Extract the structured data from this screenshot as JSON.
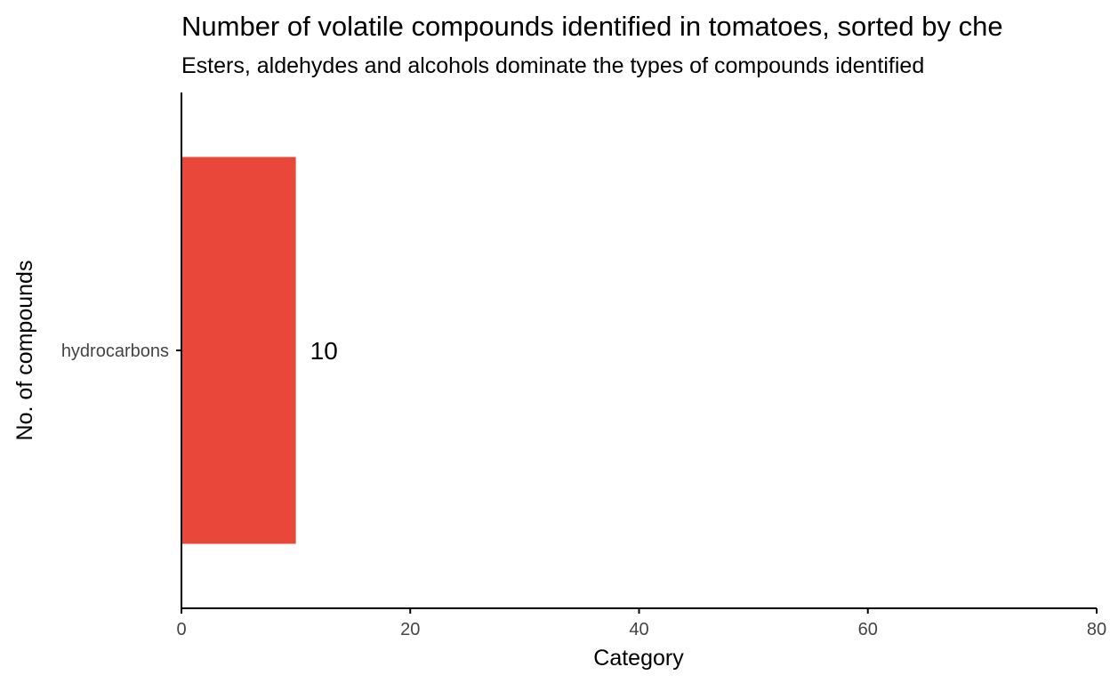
{
  "chart_data": {
    "type": "bar",
    "orientation": "horizontal",
    "title": "Number of volatile compounds identified in tomatoes, sorted by che",
    "subtitle": "Esters, aldehydes and alcohols dominate the types of compounds identified",
    "xlabel": "Category",
    "ylabel": "No. of compounds",
    "categories": [
      "hydrocarbons"
    ],
    "values": [
      10
    ],
    "data_labels": [
      "10"
    ],
    "xlim": [
      0,
      80
    ],
    "xticks": [
      0,
      20,
      40,
      60,
      80
    ],
    "xtick_labels": [
      "0",
      "20",
      "40",
      "60",
      "80"
    ],
    "grid": false,
    "legend": "none",
    "bar_color": "#E8473A"
  }
}
